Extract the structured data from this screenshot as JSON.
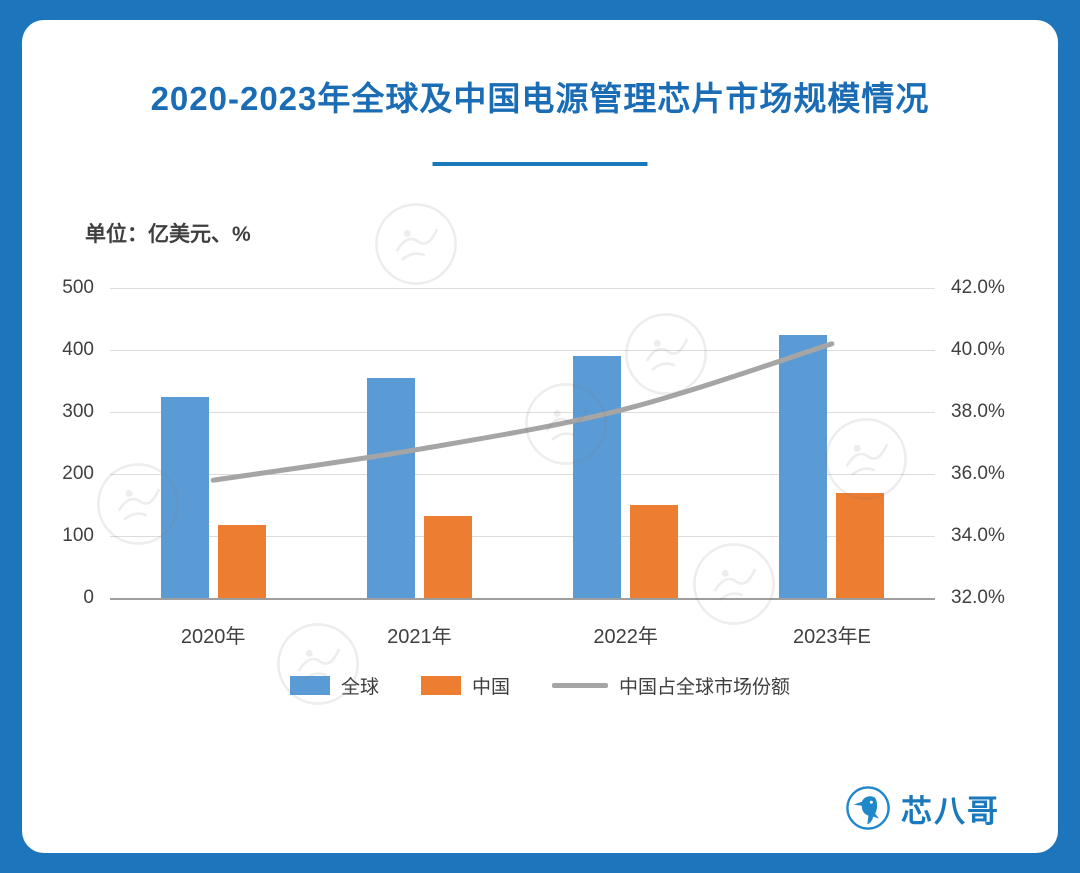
{
  "page": {
    "title": "2020-2023年全球及中国电源管理芯片市场规模情况",
    "unit_label": "单位：亿美元、%"
  },
  "chart_data": {
    "type": "bar",
    "subtype": "bar+line combo, dual axis",
    "categories": [
      "2020年",
      "2021年",
      "2022年",
      "2023年E"
    ],
    "series": [
      {
        "key": "global",
        "name": "全球",
        "type": "bar",
        "axis": "left",
        "color": "#5B9BD5",
        "values": [
          325,
          355,
          390,
          425
        ]
      },
      {
        "key": "china",
        "name": "中国",
        "type": "bar",
        "axis": "left",
        "color": "#ED7D31",
        "values": [
          118,
          132,
          150,
          170
        ]
      },
      {
        "key": "china-share",
        "name": "中国占全球市场份额",
        "type": "line",
        "axis": "right",
        "color": "#A5A5A5",
        "values": [
          35.8,
          36.8,
          38.1,
          40.2
        ]
      }
    ],
    "left_axis": {
      "min": 0,
      "max": 500,
      "ticks": [
        0,
        100,
        200,
        300,
        400,
        500
      ]
    },
    "right_axis": {
      "min": 32,
      "max": 42,
      "ticks": [
        "32.0%",
        "34.0%",
        "36.0%",
        "38.0%",
        "40.0%",
        "42.0%"
      ]
    },
    "grid": true,
    "legend_position": "bottom"
  },
  "logo": {
    "icon": "kingfisher-bird-icon",
    "text": "芯八哥"
  },
  "colors": {
    "frame": "#1D76BB",
    "title": "#1A6DB5",
    "bar_global": "#5B9BD5",
    "bar_china": "#ED7D31",
    "share_line": "#A5A5A5"
  }
}
